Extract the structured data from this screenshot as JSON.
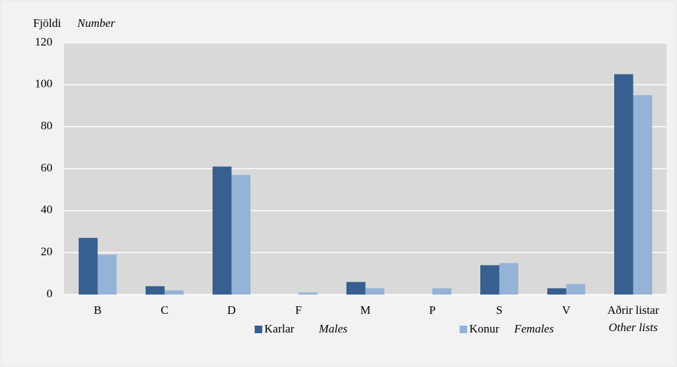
{
  "chart_data": {
    "type": "bar",
    "ylabel": "Fjöldi",
    "ylabel_translation": "Number",
    "categories": [
      "B",
      "C",
      "D",
      "F",
      "M",
      "P",
      "S",
      "V",
      "Aðrir listar"
    ],
    "last_category_translation": "Other lists",
    "series": [
      {
        "name": "Karlar",
        "name_translation": "Males",
        "color": "#375f8f",
        "values": [
          27,
          4,
          61,
          0,
          6,
          0,
          14,
          3,
          105
        ]
      },
      {
        "name": "Konur",
        "name_translation": "Females",
        "color": "#95b3d7",
        "values": [
          19,
          2,
          57,
          1,
          3,
          3,
          15,
          5,
          95
        ]
      }
    ],
    "ylim": [
      0,
      120
    ],
    "yticks": [
      0,
      20,
      40,
      60,
      80,
      100,
      120
    ],
    "grid": true
  }
}
